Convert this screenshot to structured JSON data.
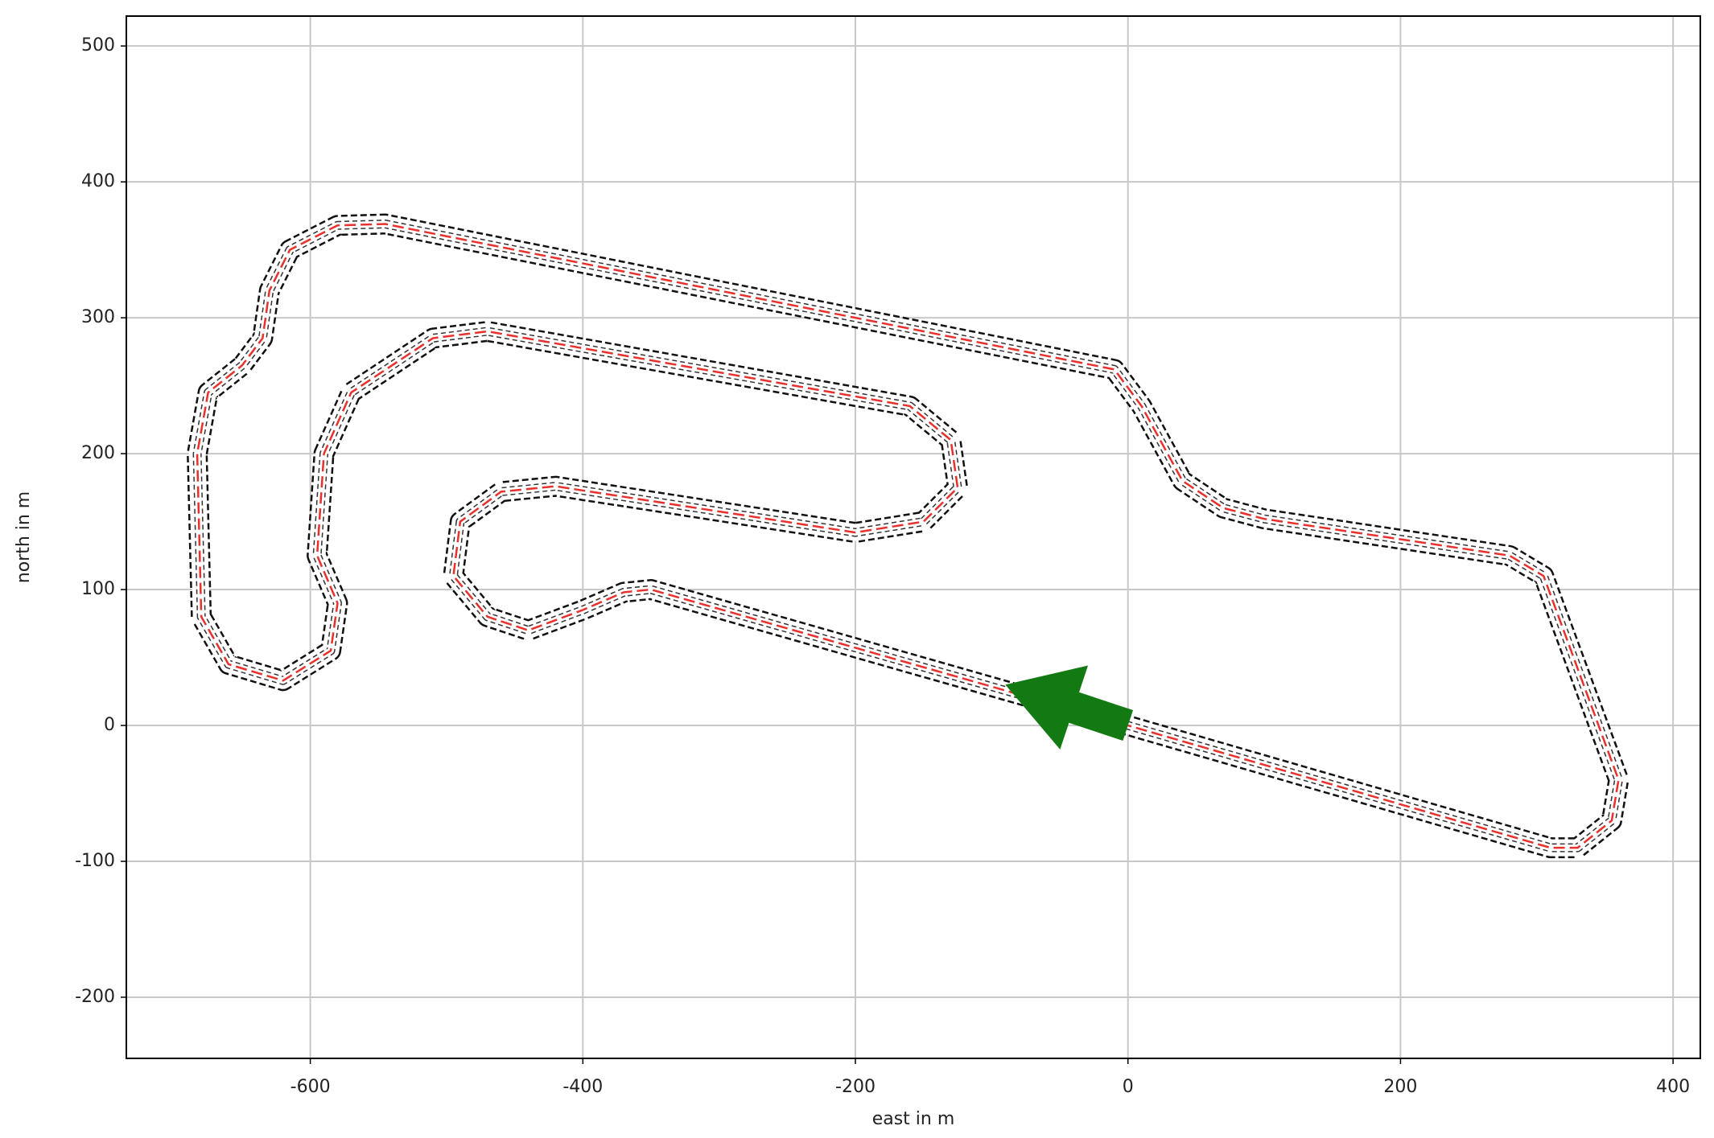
{
  "chart_data": {
    "type": "line",
    "xlabel": "east in m",
    "ylabel": "north in m",
    "xlim": [
      -735,
      420
    ],
    "ylim": [
      -245,
      522
    ],
    "xticks": [
      -600,
      -400,
      -200,
      0,
      200,
      400
    ],
    "yticks": [
      -200,
      -100,
      0,
      100,
      200,
      300,
      400,
      500
    ],
    "grid": true,
    "series": [
      {
        "color": "#e8312c",
        "x": [
          0,
          -350,
          -370,
          -400,
          -440,
          -470,
          -495,
          -490,
          -460,
          -420,
          -200,
          -150,
          -125,
          -130,
          -160,
          -470,
          -510,
          -570,
          -590,
          -595,
          -580,
          -585,
          -620,
          -660,
          -680,
          -683,
          -675,
          -650,
          -635,
          -630,
          -615,
          -580,
          -545,
          -10,
          10,
          40,
          70,
          100,
          280,
          305,
          360,
          355,
          330,
          310,
          0
        ],
        "y": [
          0,
          100,
          98,
          85,
          70,
          80,
          110,
          150,
          172,
          176,
          142,
          150,
          175,
          210,
          235,
          290,
          285,
          245,
          200,
          125,
          90,
          55,
          33,
          45,
          80,
          200,
          245,
          265,
          285,
          320,
          350,
          368,
          369,
          262,
          235,
          180,
          160,
          152,
          125,
          110,
          -40,
          -70,
          -90,
          -90,
          0
        ]
      }
    ],
    "arrow": {
      "x": 0,
      "y": 0,
      "dx": -90,
      "dy": 30,
      "color": "#137a13"
    }
  }
}
